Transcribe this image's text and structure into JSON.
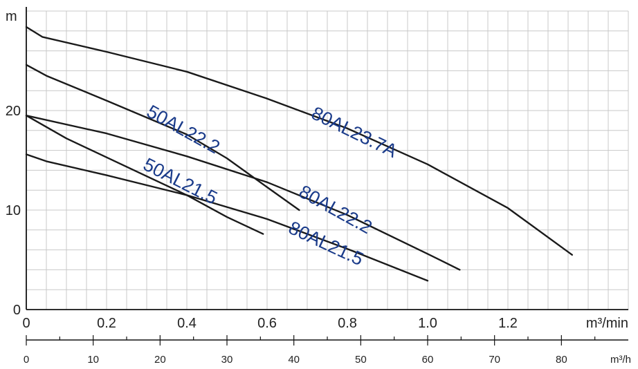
{
  "chart_data": {
    "type": "line",
    "ylabel": "m",
    "xlabel": "m³/min",
    "x2label": "m³/h",
    "xlim": [
      0,
      1.5
    ],
    "ylim": [
      0,
      30
    ],
    "x_ticks": [
      "0",
      "0.2",
      "0.4",
      "0.6",
      "0.8",
      "1.0",
      "1.2"
    ],
    "x2_ticks": [
      "0",
      "10",
      "20",
      "30",
      "40",
      "50",
      "60",
      "70",
      "80"
    ],
    "y_ticks": [
      "0",
      "10",
      "20"
    ],
    "grid": true,
    "line_color": "#1a1a1a",
    "label_color": "#1a3b8a",
    "series": [
      {
        "name": "80AL23.7A",
        "x": [
          0,
          0.04,
          0.2,
          0.4,
          0.6,
          0.8,
          1.0,
          1.2,
          1.36
        ],
        "y": [
          28.4,
          27.4,
          25.9,
          23.9,
          21.2,
          18.2,
          14.6,
          10.2,
          5.5
        ]
      },
      {
        "name": "50AL22.2",
        "x": [
          0,
          0.05,
          0.2,
          0.4,
          0.5,
          0.6,
          0.68
        ],
        "y": [
          24.6,
          23.5,
          21.0,
          17.6,
          15.2,
          12.3,
          10.0
        ]
      },
      {
        "name": "80AL22.2",
        "x": [
          0,
          0.2,
          0.4,
          0.6,
          0.8,
          1.0,
          1.08
        ],
        "y": [
          19.5,
          17.7,
          15.4,
          12.8,
          9.5,
          5.6,
          4.0
        ]
      },
      {
        "name": "50AL21.5",
        "x": [
          0,
          0.1,
          0.2,
          0.4,
          0.5,
          0.59
        ],
        "y": [
          19.5,
          17.2,
          15.3,
          11.5,
          9.3,
          7.6
        ]
      },
      {
        "name": "80AL21.5",
        "x": [
          0,
          0.05,
          0.2,
          0.4,
          0.6,
          0.8,
          1.0
        ],
        "y": [
          15.6,
          14.9,
          13.5,
          11.5,
          9.1,
          6.1,
          2.9
        ]
      }
    ]
  }
}
